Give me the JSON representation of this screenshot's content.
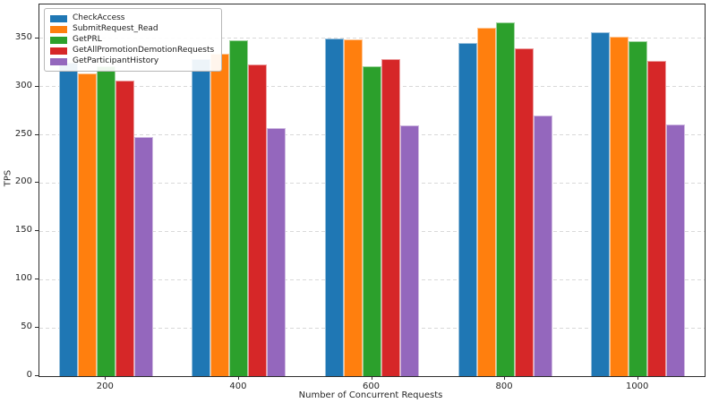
{
  "chart_data": {
    "type": "bar",
    "title": "",
    "xlabel": "Number of Concurrent Requests",
    "ylabel": "TPS",
    "categories": [
      "200",
      "400",
      "600",
      "800",
      "1000"
    ],
    "series": [
      {
        "name": "CheckAccess",
        "color": "#1f77b4",
        "values": [
          325,
          328,
          350,
          345,
          356
        ]
      },
      {
        "name": "SubmitRequest_Read",
        "color": "#ff7f0e",
        "values": [
          314,
          334,
          349,
          361,
          352
        ]
      },
      {
        "name": "GetPRL",
        "color": "#2ca02c",
        "values": [
          321,
          348,
          321,
          366,
          347
        ]
      },
      {
        "name": "GetAllPromotionDemotionRequests",
        "color": "#d62728",
        "values": [
          306,
          323,
          328,
          340,
          327
        ]
      },
      {
        "name": "GetParticipantHistory",
        "color": "#9467bd",
        "values": [
          248,
          257,
          260,
          270,
          261
        ]
      }
    ],
    "ylim": [
      0,
      385
    ],
    "yticks": [
      0,
      50,
      100,
      150,
      200,
      250,
      300,
      350
    ],
    "grid": "horizontal-dashed",
    "legend_position": "upper-left",
    "background": "#ffffff",
    "grid_color": "#d9d9d9",
    "spine_color": "#2e2e2e"
  }
}
